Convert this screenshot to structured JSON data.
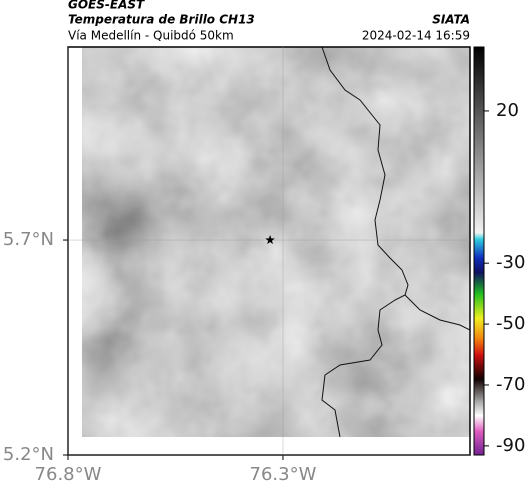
{
  "header": {
    "source": "GOES-EAST",
    "title": "Temperatura de Brillo CH13",
    "subtitle": "Vía Medellín - Quibdó 50km",
    "org": "SIATA",
    "datetime": "2024-02-14 16:59"
  },
  "map": {
    "xlim": [
      -76.8,
      -75.865
    ],
    "ylim": [
      5.2,
      6.149
    ],
    "xticks": [
      {
        "value": -76.8,
        "label": "76.8°W"
      },
      {
        "value": -76.3,
        "label": "76.3°W"
      }
    ],
    "yticks": [
      {
        "value": 5.7,
        "label": "5.7°N"
      },
      {
        "value": 5.2,
        "label": "5.2°N"
      }
    ],
    "grid": true,
    "marker": {
      "lon": -76.33,
      "lat": 5.7
    }
  },
  "colorbar": {
    "lim": [
      -93,
      41
    ],
    "ticks": [
      20,
      -30,
      -50,
      -70,
      -90
    ],
    "colormap": [
      [
        41,
        "#000000"
      ],
      [
        20,
        "#555555"
      ],
      [
        -20,
        "#f2f2f2"
      ],
      [
        -22,
        "#30d0e0"
      ],
      [
        -28,
        "#1030c0"
      ],
      [
        -33,
        "#101060"
      ],
      [
        -40,
        "#20c020"
      ],
      [
        -48,
        "#f0f020"
      ],
      [
        -55,
        "#f08010"
      ],
      [
        -60,
        "#d01010"
      ],
      [
        -68,
        "#100000"
      ],
      [
        -75,
        "#a0a0a0"
      ],
      [
        -80,
        "#ffffff"
      ],
      [
        -85,
        "#e060c0"
      ],
      [
        -93,
        "#702090"
      ]
    ]
  }
}
